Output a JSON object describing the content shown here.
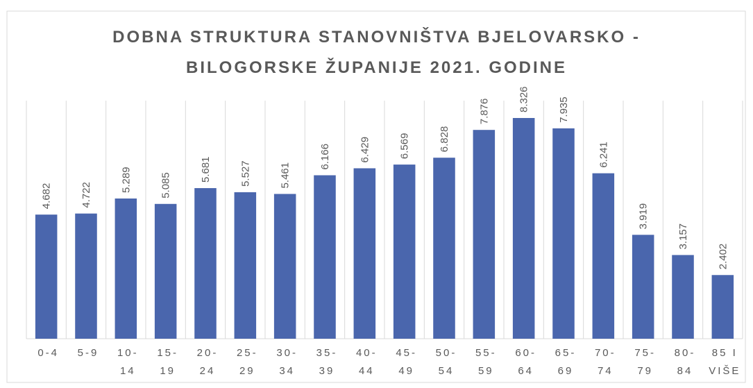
{
  "chart_data": {
    "type": "bar",
    "title": "DOBNA STRUKTURA STANOVNIŠTVA BJELOVARSKO - BILOGORSKE ŽUPANIJE 2021. GODINE",
    "categories": [
      "0-4",
      "5-9",
      "10-14",
      "15-19",
      "20-24",
      "25-29",
      "30-34",
      "35-39",
      "40-44",
      "45-49",
      "50-54",
      "55-59",
      "60-64",
      "65-69",
      "70-74",
      "75-79",
      "80-84",
      "85 I VIŠE"
    ],
    "values": [
      4682,
      4722,
      5289,
      5085,
      5681,
      5527,
      5461,
      6166,
      6429,
      6569,
      6828,
      7876,
      8326,
      7935,
      6241,
      3919,
      3157,
      2402
    ],
    "value_labels": [
      "4.682",
      "4.722",
      "5.289",
      "5.085",
      "5.681",
      "5.527",
      "5.461",
      "6.166",
      "6.429",
      "6.569",
      "6.828",
      "7.876",
      "8.326",
      "7.935",
      "6.241",
      "3.919",
      "3.157",
      "2.402"
    ],
    "color": "#4a66ad",
    "grid": true
  }
}
